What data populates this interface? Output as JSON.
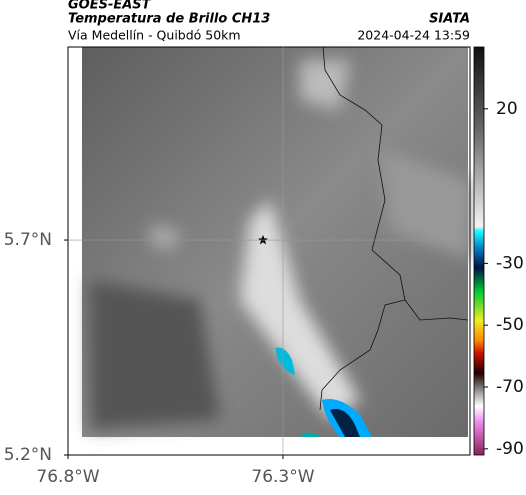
{
  "header": {
    "source": "GOES-EAST",
    "title": "Temperatura de Brillo CH13",
    "org": "SIATA",
    "subtitle": "Vía Medellín - Quibdó 50km",
    "datetime": "2024-04-24 13:59"
  },
  "map": {
    "xlim": [
      -76.8,
      -75.865
    ],
    "ylim": [
      5.2,
      6.149
    ],
    "xticks": [
      {
        "value": -76.8,
        "label": "76.8°W"
      },
      {
        "value": -76.3,
        "label": "76.3°W"
      }
    ],
    "yticks": [
      {
        "value": 5.7,
        "label": "5.7°N"
      },
      {
        "value": 5.2,
        "label": "5.2°N"
      }
    ]
  },
  "colorbar": {
    "lim": [
      40,
      -92
    ],
    "ticks": [
      20,
      -30,
      -50,
      -70,
      -90
    ]
  }
}
